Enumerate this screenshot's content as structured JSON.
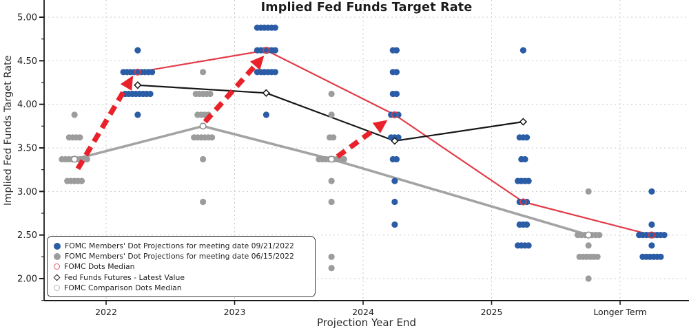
{
  "title": "Implied Fed Funds Target Rate",
  "axes": {
    "x_label": "Projection Year End",
    "y_label": "Implied Fed Funds Target Rate"
  },
  "legend": {
    "items": [
      {
        "marker": "filled-circle",
        "color": "#2b5ca6",
        "label": "FOMC Members' Dot Projections for meeting date 09/21/2022"
      },
      {
        "marker": "filled-circle",
        "color": "#9c9c9c",
        "label": "FOMC Members' Dot Projections for meeting date 06/15/2022"
      },
      {
        "marker": "open-circle",
        "color": "#e06570",
        "label": "FOMC Dots Median"
      },
      {
        "marker": "open-diamond",
        "color": "#222222",
        "label": "Fed Funds Futures - Latest Value"
      },
      {
        "marker": "open-circle",
        "color": "#b5b5b5",
        "label": "FOMC Comparison Dots Median"
      }
    ]
  },
  "chart_data": {
    "type": "scatter",
    "title": "Implied Fed Funds Target Rate",
    "xlabel": "Projection Year End",
    "ylabel": "Implied Fed Funds Target Rate",
    "categories": [
      "2022",
      "2023",
      "2024",
      "2025",
      "Longer Term"
    ],
    "ylim": [
      1.75,
      5.2
    ],
    "yticks": [
      2.0,
      2.5,
      3.0,
      3.5,
      4.0,
      4.5,
      5.0
    ],
    "ytick_labels": [
      "2.00",
      "2.50",
      "3.00",
      "3.50",
      "4.00",
      "4.50",
      "5.00"
    ],
    "grid": true,
    "legend_position": "lower left",
    "colors": {
      "blue_dots": "#2b5ca6",
      "gray_dots": "#9c9c9c",
      "red_line": "#e23b48",
      "black_line": "#161616",
      "gray_line": "#a3a3a3",
      "arrow_red": "#e8212b",
      "gridline": "#c9c9c9",
      "axis": "#1a1a1a"
    },
    "series": [
      {
        "name": "FOMC Members' Dot Projections for meeting date 09/21/2022",
        "type": "dot-groups",
        "color": "#2b5ca6",
        "x_offset": 0.246,
        "groups": {
          "2022": [
            [
              4.62,
              1
            ],
            [
              4.37,
              9
            ],
            [
              4.12,
              8
            ],
            [
              3.88,
              1
            ]
          ],
          "2023": [
            [
              4.88,
              6
            ],
            [
              4.62,
              6
            ],
            [
              4.37,
              6
            ],
            [
              3.88,
              1
            ]
          ],
          "2024": [
            [
              4.62,
              2
            ],
            [
              4.37,
              2
            ],
            [
              4.12,
              2
            ],
            [
              3.88,
              3
            ],
            [
              3.62,
              3
            ],
            [
              3.37,
              2
            ],
            [
              3.12,
              1
            ],
            [
              2.88,
              1
            ],
            [
              2.62,
              1
            ]
          ],
          "2025": [
            [
              4.62,
              1
            ],
            [
              3.62,
              3
            ],
            [
              3.37,
              2
            ],
            [
              3.12,
              4
            ],
            [
              2.88,
              3
            ],
            [
              2.62,
              3
            ],
            [
              2.38,
              4
            ]
          ],
          "Longer Term": [
            [
              3.0,
              1
            ],
            [
              2.62,
              1
            ],
            [
              2.5,
              8
            ],
            [
              2.38,
              1
            ],
            [
              2.25,
              6
            ]
          ]
        }
      },
      {
        "name": "FOMC Members' Dot Projections for meeting date 06/15/2022",
        "type": "dot-groups",
        "color": "#9c9c9c",
        "x_offset": -0.246,
        "groups": {
          "2022": [
            [
              3.88,
              1
            ],
            [
              3.62,
              4
            ],
            [
              3.37,
              8
            ],
            [
              3.12,
              5
            ]
          ],
          "2023": [
            [
              4.37,
              1
            ],
            [
              4.12,
              5
            ],
            [
              3.88,
              4
            ],
            [
              3.62,
              6
            ],
            [
              3.37,
              1
            ],
            [
              2.88,
              1
            ]
          ],
          "2024": [
            [
              4.12,
              1
            ],
            [
              3.88,
              1
            ],
            [
              3.62,
              2
            ],
            [
              3.37,
              8
            ],
            [
              3.12,
              1
            ],
            [
              2.88,
              1
            ],
            [
              2.25,
              1
            ],
            [
              2.12,
              1
            ]
          ],
          "Longer Term": [
            [
              3.0,
              1
            ],
            [
              2.5,
              7
            ],
            [
              2.38,
              1
            ],
            [
              2.25,
              6
            ],
            [
              2.0,
              1
            ]
          ]
        }
      },
      {
        "name": "FOMC Dots Median",
        "type": "line",
        "color": "#e23b48",
        "width": 2.2,
        "marker": "open-circle",
        "marker_color": "#d8404c",
        "x_offset": 0.246,
        "points": [
          [
            "2022",
            4.37
          ],
          [
            "2023",
            4.62
          ],
          [
            "2024",
            3.88
          ],
          [
            "2025",
            2.88
          ],
          [
            "Longer Term",
            2.5
          ]
        ]
      },
      {
        "name": "Fed Funds Futures - Latest Value",
        "type": "line",
        "color": "#161616",
        "width": 2.2,
        "marker": "open-diamond",
        "marker_color": "#161616",
        "x_offset": 0.246,
        "points": [
          [
            "2022",
            4.22
          ],
          [
            "2023",
            4.13
          ],
          [
            "2024",
            3.58
          ],
          [
            "2025",
            3.8
          ]
        ]
      },
      {
        "name": "FOMC Comparison Dots Median",
        "type": "line",
        "color": "#a3a3a3",
        "width": 3.6,
        "marker": "open-circle",
        "marker_color": "#909090",
        "x_offset": -0.246,
        "points": [
          [
            "2022",
            3.37
          ],
          [
            "2023",
            3.75
          ],
          [
            "2024",
            3.37
          ],
          [
            "Longer Term",
            2.5
          ]
        ]
      }
    ],
    "annotations": {
      "arrow_color": "#e8212b",
      "arrows": [
        {
          "from": [
            -0.22,
            3.26
          ],
          "to": [
            0.21,
            4.33
          ]
        },
        {
          "from": [
            0.77,
            3.8
          ],
          "to": [
            1.23,
            4.56
          ]
        },
        {
          "from": [
            1.8,
            3.4
          ],
          "to": [
            2.19,
            3.82
          ]
        }
      ]
    }
  }
}
